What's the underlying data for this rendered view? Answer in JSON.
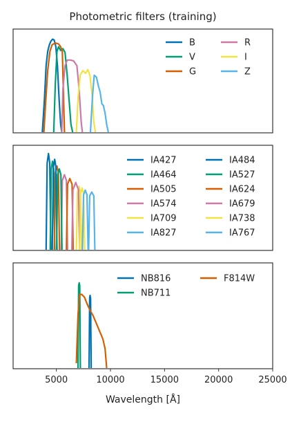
{
  "chart_data": {
    "title": "Photometric filters (training)",
    "xlabel": "Wavelength [Å]",
    "xlim": [
      1000,
      25000
    ],
    "xticks": [
      5000,
      10000,
      15000,
      20000,
      25000
    ],
    "ylim": [
      0,
      1.05
    ],
    "grid": false,
    "panels": [
      {
        "type": "line",
        "legend_position": "top-right",
        "legend_columns": 2,
        "series": [
          {
            "name": "B",
            "color": "#0072b2",
            "x": [
              3700,
              3900,
              4050,
              4200,
              4350,
              4500,
              4650,
              4800,
              4950,
              5100,
              5250,
              5400,
              5500
            ],
            "y": [
              0.0,
              0.35,
              0.7,
              0.85,
              0.92,
              0.96,
              0.98,
              0.97,
              0.9,
              0.7,
              0.35,
              0.08,
              0.0
            ]
          },
          {
            "name": "V",
            "color": "#009e73",
            "x": [
              4750,
              4900,
              5050,
              5200,
              5400,
              5600,
              5800,
              6000,
              6200,
              6350,
              6500
            ],
            "y": [
              0.0,
              0.5,
              0.85,
              0.9,
              0.86,
              0.88,
              0.84,
              0.6,
              0.3,
              0.08,
              0.0
            ]
          },
          {
            "name": "G",
            "color": "#d55e00",
            "x": [
              3850,
              4000,
              4200,
              4400,
              4600,
              4900,
              5200,
              5400,
              5550,
              5650,
              5750
            ],
            "y": [
              0.0,
              0.3,
              0.65,
              0.85,
              0.92,
              0.94,
              0.93,
              0.9,
              0.85,
              0.4,
              0.0
            ]
          },
          {
            "name": "R",
            "color": "#cc79a7",
            "x": [
              5500,
              5600,
              5800,
              6000,
              6300,
              6600,
              6900,
              7100,
              7300,
              7400
            ],
            "y": [
              0.0,
              0.45,
              0.7,
              0.76,
              0.76,
              0.75,
              0.7,
              0.45,
              0.1,
              0.0
            ]
          },
          {
            "name": "I",
            "color": "#f0e442",
            "x": [
              6850,
              7000,
              7200,
              7450,
              7700,
              7900,
              8100,
              8300,
              8450,
              8600
            ],
            "y": [
              0.0,
              0.35,
              0.6,
              0.65,
              0.62,
              0.66,
              0.6,
              0.4,
              0.12,
              0.0
            ]
          },
          {
            "name": "Z",
            "color": "#56b4e9",
            "x": [
              8150,
              8350,
              8500,
              8700,
              8900,
              9050,
              9200,
              9350,
              9500,
              9650,
              9800
            ],
            "y": [
              0.0,
              0.4,
              0.6,
              0.58,
              0.48,
              0.42,
              0.3,
              0.28,
              0.2,
              0.08,
              0.0
            ]
          }
        ]
      },
      {
        "type": "line",
        "legend_position": "top-right",
        "legend_columns": 2,
        "series": [
          {
            "name": "IA427",
            "color": "#0072b2",
            "x": [
              4050,
              4150,
              4270,
              4390,
              4490
            ],
            "y": [
              0.0,
              0.9,
              1.0,
              0.9,
              0.0
            ]
          },
          {
            "name": "IA464",
            "color": "#009e73",
            "x": [
              4430,
              4530,
              4640,
              4750,
              4850
            ],
            "y": [
              0.0,
              0.84,
              0.92,
              0.84,
              0.0
            ]
          },
          {
            "name": "IA505",
            "color": "#d55e00",
            "x": [
              4810,
              4910,
              5050,
              5190,
              5290
            ],
            "y": [
              0.0,
              0.8,
              0.87,
              0.8,
              0.0
            ]
          },
          {
            "name": "IA574",
            "color": "#cc79a7",
            "x": [
              5450,
              5550,
              5740,
              5930,
              6030
            ],
            "y": [
              0.0,
              0.72,
              0.78,
              0.72,
              0.0
            ]
          },
          {
            "name": "IA709",
            "color": "#f0e442",
            "x": [
              6850,
              6950,
              7090,
              7230,
              7330
            ],
            "y": [
              0.0,
              0.6,
              0.66,
              0.6,
              0.0
            ]
          },
          {
            "name": "IA827",
            "color": "#56b4e9",
            "x": [
              7980,
              8080,
              8270,
              8460,
              8560
            ],
            "y": [
              0.0,
              0.56,
              0.6,
              0.56,
              0.0
            ]
          },
          {
            "name": "IA484",
            "color": "#0072b2",
            "x": [
              4620,
              4720,
              4840,
              4960,
              5060
            ],
            "y": [
              0.0,
              0.86,
              0.94,
              0.86,
              0.0
            ]
          },
          {
            "name": "IA527",
            "color": "#009e73",
            "x": [
              5020,
              5120,
              5270,
              5420,
              5520
            ],
            "y": [
              0.0,
              0.78,
              0.84,
              0.78,
              0.0
            ]
          },
          {
            "name": "IA624",
            "color": "#d55e00",
            "x": [
              5930,
              6030,
              6240,
              6450,
              6550
            ],
            "y": [
              0.0,
              0.68,
              0.74,
              0.68,
              0.0
            ]
          },
          {
            "name": "IA679",
            "color": "#cc79a7",
            "x": [
              6430,
              6530,
              6790,
              7050,
              7150
            ],
            "y": [
              0.0,
              0.62,
              0.7,
              0.62,
              0.0
            ]
          },
          {
            "name": "IA738",
            "color": "#f0e442",
            "x": [
              7140,
              7240,
              7380,
              7520,
              7620
            ],
            "y": [
              0.0,
              0.58,
              0.64,
              0.58,
              0.0
            ]
          },
          {
            "name": "IA767",
            "color": "#56b4e9",
            "x": [
              7410,
              7510,
              7670,
              7830,
              7930
            ],
            "y": [
              0.0,
              0.57,
              0.62,
              0.57,
              0.0
            ]
          }
        ]
      },
      {
        "type": "line",
        "legend_position": "top-center",
        "legend_columns": 2,
        "series": [
          {
            "name": "NB816",
            "color": "#0072b2",
            "x": [
              8020,
              8080,
              8120,
              8160,
              8220
            ],
            "y": [
              0.0,
              0.72,
              0.75,
              0.72,
              0.0
            ]
          },
          {
            "name": "NB711",
            "color": "#009e73",
            "x": [
              7000,
              7060,
              7110,
              7160,
              7220
            ],
            "y": [
              0.0,
              0.85,
              0.88,
              0.85,
              0.0
            ]
          },
          {
            "name": "F814W",
            "color": "#d55e00",
            "x": [
              6850,
              7000,
              7150,
              7350,
              7600,
              7850,
              8100,
              8400,
              8700,
              9000,
              9300,
              9500,
              9650
            ],
            "y": [
              0.05,
              0.55,
              0.76,
              0.76,
              0.73,
              0.66,
              0.6,
              0.54,
              0.46,
              0.38,
              0.3,
              0.2,
              0.0
            ]
          }
        ]
      }
    ]
  }
}
